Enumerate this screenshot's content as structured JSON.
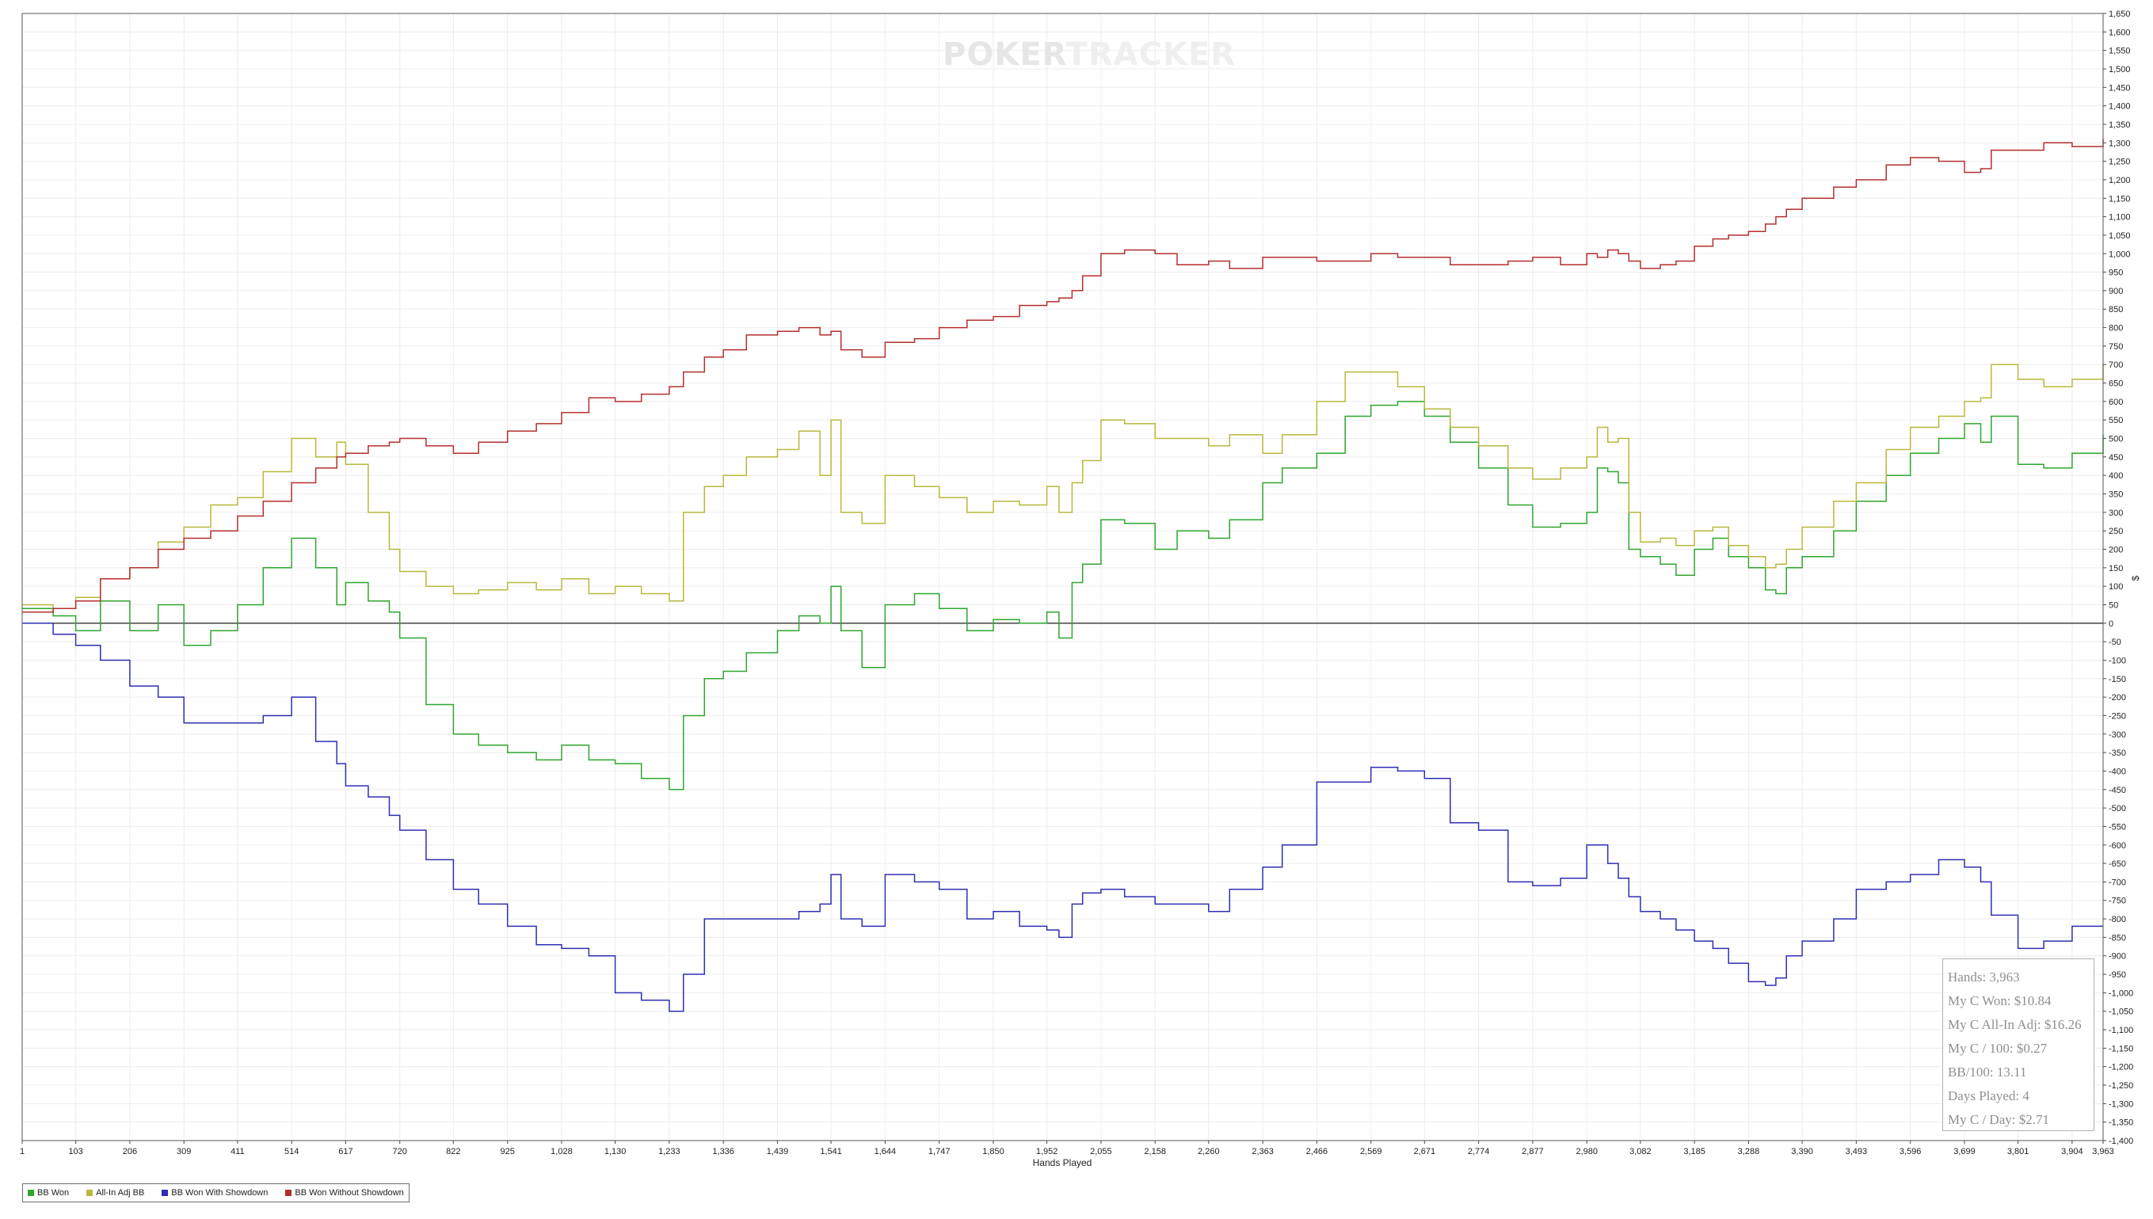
{
  "watermark": {
    "part1": "POKER",
    "part2": "TRACKER"
  },
  "chart_data": {
    "type": "line",
    "xlabel": "Hands Played",
    "ylabel": "$",
    "xlim": [
      1,
      3963
    ],
    "ylim": [
      -1400,
      1650
    ],
    "grid": true,
    "legend_position": "bottom-left",
    "x_ticks": [
      1,
      103,
      206,
      309,
      411,
      514,
      617,
      720,
      822,
      925,
      1028,
      1130,
      1233,
      1336,
      1439,
      1541,
      1644,
      1747,
      1850,
      1952,
      2055,
      2158,
      2260,
      2363,
      2466,
      2569,
      2671,
      2774,
      2877,
      2980,
      3082,
      3185,
      3288,
      3390,
      3493,
      3596,
      3699,
      3801,
      3904,
      3963
    ],
    "x_tick_labels": [
      "1",
      "103",
      "206",
      "309",
      "411",
      "514",
      "617",
      "720",
      "822",
      "925",
      "1,028",
      "1,130",
      "1,233",
      "1,336",
      "1,439",
      "1,541",
      "1,644",
      "1,747",
      "1,850",
      "1,952",
      "2,055",
      "2,158",
      "2,260",
      "2,363",
      "2,466",
      "2,569",
      "2,671",
      "2,774",
      "2,877",
      "2,980",
      "3,082",
      "3,185",
      "3,288",
      "3,390",
      "3,493",
      "3,596",
      "3,699",
      "3,801",
      "3,904",
      "3,963"
    ],
    "y_tick_step": 50,
    "series": [
      {
        "name": "BB Won",
        "color": "#2ea62e",
        "x": [
          1,
          60,
          103,
          150,
          206,
          260,
          309,
          360,
          411,
          460,
          514,
          560,
          600,
          617,
          660,
          700,
          720,
          770,
          822,
          870,
          925,
          980,
          1028,
          1080,
          1130,
          1180,
          1233,
          1260,
          1300,
          1336,
          1380,
          1439,
          1480,
          1520,
          1541,
          1560,
          1600,
          1644,
          1700,
          1747,
          1800,
          1850,
          1900,
          1952,
          1975,
          2000,
          2020,
          2055,
          2100,
          2158,
          2200,
          2260,
          2300,
          2363,
          2400,
          2466,
          2520,
          2569,
          2620,
          2671,
          2720,
          2774,
          2830,
          2877,
          2930,
          2980,
          3000,
          3020,
          3040,
          3060,
          3082,
          3120,
          3150,
          3185,
          3220,
          3250,
          3288,
          3320,
          3340,
          3360,
          3390,
          3450,
          3493,
          3550,
          3596,
          3650,
          3699,
          3730,
          3750,
          3801,
          3850,
          3904,
          3963
        ],
        "values": [
          40,
          20,
          -20,
          60,
          -20,
          50,
          -60,
          -20,
          50,
          150,
          230,
          150,
          50,
          110,
          60,
          30,
          -40,
          -220,
          -300,
          -330,
          -350,
          -370,
          -330,
          -370,
          -380,
          -420,
          -450,
          -250,
          -150,
          -130,
          -80,
          -20,
          20,
          0,
          100,
          -20,
          -120,
          50,
          80,
          40,
          -20,
          10,
          0,
          30,
          -40,
          110,
          160,
          280,
          270,
          200,
          250,
          230,
          280,
          380,
          420,
          460,
          560,
          590,
          600,
          560,
          490,
          420,
          320,
          260,
          270,
          300,
          420,
          410,
          380,
          200,
          180,
          160,
          130,
          200,
          230,
          180,
          150,
          90,
          80,
          150,
          180,
          250,
          330,
          400,
          460,
          500,
          540,
          490,
          560,
          430,
          420,
          460,
          510
        ]
      },
      {
        "name": "All-In Adj BB",
        "color": "#b8b83c",
        "x": [
          1,
          60,
          103,
          150,
          206,
          260,
          309,
          360,
          411,
          460,
          514,
          560,
          600,
          617,
          660,
          700,
          720,
          770,
          822,
          870,
          925,
          980,
          1028,
          1080,
          1130,
          1180,
          1233,
          1260,
          1300,
          1336,
          1380,
          1439,
          1480,
          1520,
          1541,
          1560,
          1600,
          1644,
          1700,
          1747,
          1800,
          1850,
          1900,
          1952,
          1975,
          2000,
          2020,
          2055,
          2100,
          2158,
          2200,
          2260,
          2300,
          2363,
          2400,
          2466,
          2520,
          2569,
          2620,
          2671,
          2720,
          2774,
          2830,
          2877,
          2930,
          2980,
          3000,
          3020,
          3040,
          3060,
          3082,
          3120,
          3150,
          3185,
          3220,
          3250,
          3288,
          3320,
          3340,
          3360,
          3390,
          3450,
          3493,
          3550,
          3596,
          3650,
          3699,
          3730,
          3750,
          3801,
          3850,
          3904,
          3963
        ],
        "values": [
          50,
          40,
          70,
          120,
          150,
          220,
          260,
          320,
          340,
          410,
          500,
          450,
          490,
          430,
          300,
          200,
          140,
          100,
          80,
          90,
          110,
          90,
          120,
          80,
          100,
          80,
          60,
          300,
          370,
          400,
          450,
          470,
          520,
          400,
          550,
          300,
          270,
          400,
          370,
          340,
          300,
          330,
          320,
          370,
          300,
          380,
          440,
          550,
          540,
          500,
          500,
          480,
          510,
          460,
          510,
          600,
          680,
          680,
          640,
          580,
          530,
          480,
          420,
          390,
          420,
          450,
          530,
          490,
          500,
          300,
          220,
          230,
          210,
          250,
          260,
          210,
          180,
          150,
          160,
          200,
          260,
          330,
          380,
          470,
          530,
          560,
          600,
          610,
          700,
          660,
          640,
          660,
          700
        ]
      },
      {
        "name": "BB Won With Showdown",
        "color": "#2e2eb4",
        "x": [
          1,
          60,
          103,
          150,
          206,
          260,
          309,
          360,
          411,
          460,
          514,
          560,
          600,
          617,
          660,
          700,
          720,
          770,
          822,
          870,
          925,
          980,
          1028,
          1080,
          1130,
          1180,
          1233,
          1260,
          1300,
          1336,
          1380,
          1439,
          1480,
          1520,
          1541,
          1560,
          1600,
          1644,
          1700,
          1747,
          1800,
          1850,
          1900,
          1952,
          1975,
          2000,
          2020,
          2055,
          2100,
          2158,
          2200,
          2260,
          2300,
          2363,
          2400,
          2466,
          2520,
          2569,
          2620,
          2671,
          2720,
          2774,
          2830,
          2877,
          2930,
          2980,
          3000,
          3020,
          3040,
          3060,
          3082,
          3120,
          3150,
          3185,
          3220,
          3250,
          3288,
          3320,
          3340,
          3360,
          3390,
          3450,
          3493,
          3550,
          3596,
          3650,
          3699,
          3730,
          3750,
          3801,
          3850,
          3904,
          3963
        ],
        "values": [
          0,
          -30,
          -60,
          -100,
          -170,
          -200,
          -270,
          -270,
          -270,
          -250,
          -200,
          -320,
          -380,
          -440,
          -470,
          -520,
          -560,
          -640,
          -720,
          -760,
          -820,
          -870,
          -880,
          -900,
          -1000,
          -1020,
          -1050,
          -950,
          -800,
          -800,
          -800,
          -800,
          -780,
          -760,
          -680,
          -800,
          -820,
          -680,
          -700,
          -720,
          -800,
          -780,
          -820,
          -830,
          -850,
          -760,
          -730,
          -720,
          -740,
          -760,
          -760,
          -780,
          -720,
          -660,
          -600,
          -430,
          -430,
          -390,
          -400,
          -420,
          -540,
          -560,
          -700,
          -710,
          -690,
          -600,
          -600,
          -650,
          -690,
          -740,
          -780,
          -800,
          -830,
          -860,
          -880,
          -920,
          -970,
          -980,
          -960,
          -900,
          -860,
          -800,
          -720,
          -700,
          -680,
          -640,
          -660,
          -700,
          -790,
          -880,
          -860,
          -820,
          -820
        ]
      },
      {
        "name": "BB Won Without Showdown",
        "color": "#b42e2e",
        "x": [
          1,
          60,
          103,
          150,
          206,
          260,
          309,
          360,
          411,
          460,
          514,
          560,
          600,
          617,
          660,
          700,
          720,
          770,
          822,
          870,
          925,
          980,
          1028,
          1080,
          1130,
          1180,
          1233,
          1260,
          1300,
          1336,
          1380,
          1439,
          1480,
          1520,
          1541,
          1560,
          1600,
          1644,
          1700,
          1747,
          1800,
          1850,
          1900,
          1952,
          1975,
          2000,
          2020,
          2055,
          2100,
          2158,
          2200,
          2260,
          2300,
          2363,
          2400,
          2466,
          2520,
          2569,
          2620,
          2671,
          2720,
          2774,
          2830,
          2877,
          2930,
          2980,
          3000,
          3020,
          3040,
          3060,
          3082,
          3120,
          3150,
          3185,
          3220,
          3250,
          3288,
          3320,
          3340,
          3360,
          3390,
          3450,
          3493,
          3550,
          3596,
          3650,
          3699,
          3730,
          3750,
          3801,
          3850,
          3904,
          3963
        ],
        "values": [
          30,
          40,
          60,
          120,
          150,
          200,
          230,
          250,
          290,
          330,
          380,
          420,
          450,
          460,
          480,
          490,
          500,
          480,
          460,
          490,
          520,
          540,
          570,
          610,
          600,
          620,
          640,
          680,
          720,
          740,
          780,
          790,
          800,
          780,
          790,
          740,
          720,
          760,
          770,
          800,
          820,
          830,
          860,
          870,
          880,
          900,
          940,
          1000,
          1010,
          1000,
          970,
          980,
          960,
          990,
          990,
          980,
          980,
          1000,
          990,
          990,
          970,
          970,
          980,
          990,
          970,
          1000,
          990,
          1010,
          1000,
          980,
          960,
          970,
          980,
          1020,
          1040,
          1050,
          1060,
          1080,
          1100,
          1120,
          1150,
          1180,
          1200,
          1240,
          1260,
          1250,
          1220,
          1230,
          1280,
          1280,
          1300,
          1290,
          1310
        ]
      }
    ]
  },
  "stats": [
    "Hands: 3,963",
    "My C Won: $10.84",
    "My C All-In Adj: $16.26",
    "My C / 100: $0.27",
    "BB/100: 13.11",
    "Days Played: 4",
    "My C / Day: $2.71"
  ],
  "legend": [
    {
      "label": "BB Won",
      "color": "#2ea62e"
    },
    {
      "label": "All-In Adj BB",
      "color": "#b8b83c"
    },
    {
      "label": "BB Won With Showdown",
      "color": "#2e2eb4"
    },
    {
      "label": "BB Won Without Showdown",
      "color": "#b42e2e"
    }
  ]
}
